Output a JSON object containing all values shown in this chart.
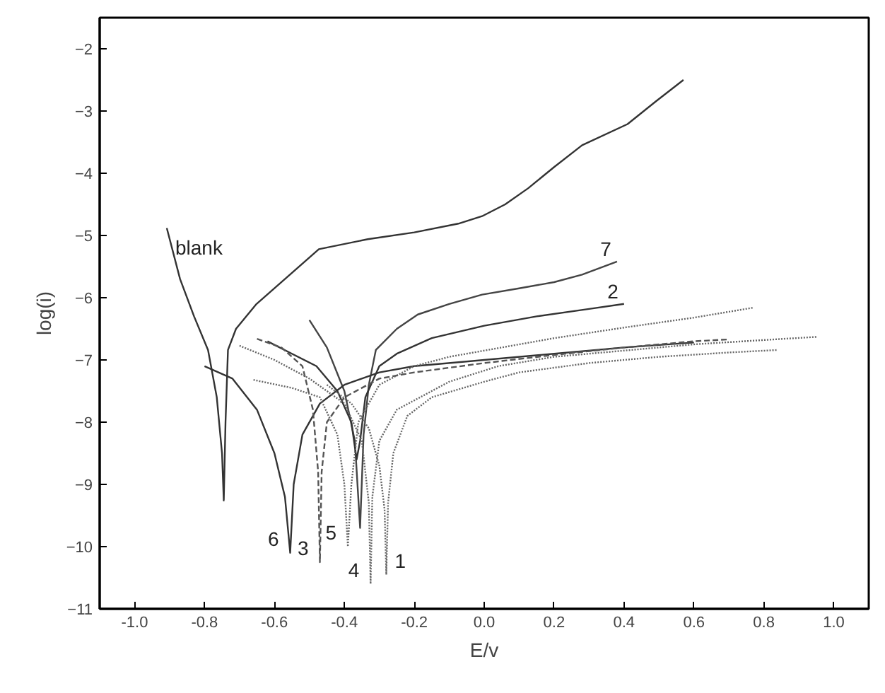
{
  "chart_data": {
    "type": "line",
    "xlabel": "E/v",
    "ylabel": "log(i)",
    "xlim": [
      -1.1,
      1.1
    ],
    "ylim": [
      -11,
      -1.5
    ],
    "xticks": [
      {
        "value": -1.0,
        "label": "-1.0"
      },
      {
        "value": -0.8,
        "label": "-0.8"
      },
      {
        "value": -0.6,
        "label": "-0.6"
      },
      {
        "value": -0.4,
        "label": "-0.4"
      },
      {
        "value": -0.2,
        "label": "-0.2"
      },
      {
        "value": 0.0,
        "label": "0.0"
      },
      {
        "value": 0.2,
        "label": "0.2"
      },
      {
        "value": 0.4,
        "label": "0.4"
      },
      {
        "value": 0.6,
        "label": "0.6"
      },
      {
        "value": 0.8,
        "label": "0.8"
      },
      {
        "value": 1.0,
        "label": "1.0"
      }
    ],
    "yticks": [
      -2,
      -3,
      -4,
      -5,
      -6,
      -7,
      -8,
      -9,
      -10,
      -11
    ],
    "grid": false,
    "legend": false,
    "series": [
      {
        "name": "blank",
        "color": "#333333",
        "line_style": "solid",
        "x": [
          -0.908,
          -0.87,
          -0.83,
          -0.79,
          -0.765,
          -0.75,
          -0.745,
          -0.74,
          -0.733,
          -0.71,
          -0.653,
          -0.55,
          -0.473,
          -0.333,
          -0.2,
          -0.074,
          -0.006,
          0.06,
          0.126,
          0.2,
          0.28,
          0.41,
          0.49,
          0.57
        ],
        "values": [
          -4.88,
          -5.7,
          -6.3,
          -6.84,
          -7.6,
          -8.5,
          -9.26,
          -8.0,
          -6.84,
          -6.5,
          -6.11,
          -5.6,
          -5.22,
          -5.06,
          -4.95,
          -4.81,
          -4.69,
          -4.5,
          -4.24,
          -3.9,
          -3.55,
          -3.21,
          -2.85,
          -2.5
        ]
      },
      {
        "name": "7",
        "color": "#444444",
        "line_style": "solid",
        "x": [
          -0.5,
          -0.45,
          -0.4,
          -0.37,
          -0.355,
          -0.345,
          -0.33,
          -0.31,
          -0.25,
          -0.19,
          -0.1,
          -0.006,
          0.1,
          0.2,
          0.28,
          0.38
        ],
        "values": [
          -6.36,
          -6.8,
          -7.5,
          -8.3,
          -9.7,
          -8.2,
          -7.4,
          -6.84,
          -6.5,
          -6.27,
          -6.1,
          -5.95,
          -5.85,
          -5.75,
          -5.63,
          -5.42
        ]
      },
      {
        "name": "2",
        "color": "#333333",
        "line_style": "solid",
        "x": [
          -0.62,
          -0.55,
          -0.48,
          -0.42,
          -0.38,
          -0.365,
          -0.355,
          -0.34,
          -0.3,
          -0.25,
          -0.15,
          0.0,
          0.15,
          0.3,
          0.4
        ],
        "values": [
          -6.7,
          -6.9,
          -7.1,
          -7.5,
          -8.0,
          -8.6,
          -8.3,
          -7.6,
          -7.1,
          -6.9,
          -6.65,
          -6.45,
          -6.3,
          -6.18,
          -6.1
        ]
      },
      {
        "name": "6",
        "color": "#333333",
        "line_style": "solid",
        "x": [
          -0.8,
          -0.72,
          -0.65,
          -0.6,
          -0.57,
          -0.555,
          -0.545,
          -0.52,
          -0.47,
          -0.4,
          -0.3,
          -0.2,
          0.0,
          0.2,
          0.4,
          0.6
        ],
        "values": [
          -7.1,
          -7.3,
          -7.8,
          -8.5,
          -9.2,
          -10.1,
          -9.0,
          -8.2,
          -7.7,
          -7.4,
          -7.2,
          -7.1,
          -7.0,
          -6.9,
          -6.8,
          -6.72
        ]
      },
      {
        "name": "3",
        "color": "#555555",
        "line_style": "dashed",
        "x": [
          -0.65,
          -0.58,
          -0.52,
          -0.49,
          -0.475,
          -0.47,
          -0.465,
          -0.45,
          -0.4,
          -0.3,
          -0.2,
          0.0,
          0.2,
          0.4,
          0.6,
          0.7
        ],
        "values": [
          -6.66,
          -6.8,
          -7.1,
          -7.8,
          -8.8,
          -10.25,
          -8.8,
          -8.0,
          -7.6,
          -7.3,
          -7.2,
          -7.05,
          -6.92,
          -6.8,
          -6.7,
          -6.67
        ]
      },
      {
        "name": "5",
        "color": "#666666",
        "line_style": "dotted",
        "x": [
          -0.66,
          -0.55,
          -0.47,
          -0.42,
          -0.4,
          -0.39,
          -0.38,
          -0.36,
          -0.3,
          -0.2,
          -0.1,
          0.0,
          0.2,
          0.4,
          0.6,
          0.77
        ],
        "values": [
          -7.32,
          -7.45,
          -7.6,
          -8.2,
          -9.0,
          -10.0,
          -9.0,
          -8.0,
          -7.4,
          -7.1,
          -6.95,
          -6.85,
          -6.65,
          -6.48,
          -6.32,
          -6.16
        ]
      },
      {
        "name": "4",
        "color": "#666666",
        "line_style": "dotted",
        "x": [
          -0.7,
          -0.6,
          -0.5,
          -0.4,
          -0.35,
          -0.33,
          -0.325,
          -0.32,
          -0.3,
          -0.25,
          -0.1,
          0.04,
          0.2,
          0.4,
          0.6,
          0.8,
          0.95
        ],
        "values": [
          -6.77,
          -7.0,
          -7.3,
          -7.7,
          -8.3,
          -9.3,
          -10.6,
          -9.2,
          -8.3,
          -7.8,
          -7.35,
          -7.1,
          -6.95,
          -6.85,
          -6.75,
          -6.68,
          -6.63
        ]
      },
      {
        "name": "1",
        "color": "#666666",
        "line_style": "dotted",
        "x": [
          -0.45,
          -0.38,
          -0.33,
          -0.3,
          -0.285,
          -0.28,
          -0.275,
          -0.26,
          -0.22,
          -0.15,
          0.0,
          0.1,
          0.3,
          0.5,
          0.7,
          0.84
        ],
        "values": [
          -7.4,
          -7.7,
          -8.1,
          -8.7,
          -9.4,
          -10.45,
          -9.3,
          -8.5,
          -7.9,
          -7.6,
          -7.35,
          -7.2,
          -7.05,
          -6.95,
          -6.88,
          -6.84
        ]
      }
    ]
  }
}
